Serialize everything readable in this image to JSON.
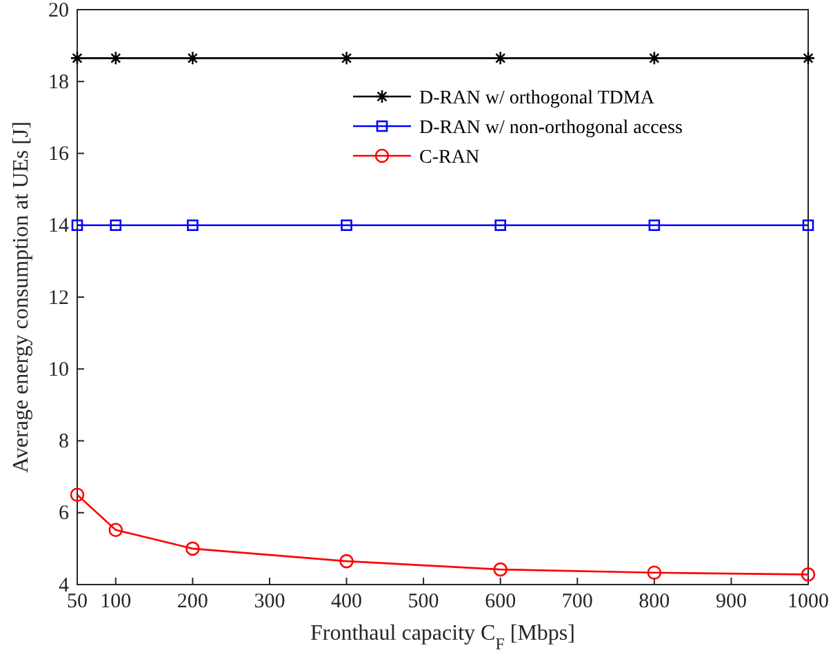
{
  "chart_data": {
    "type": "line",
    "xlabel": "Fronthaul capacity C$_{F}$ [Mbps]",
    "ylabel": "Average energy consumption at UEs [J]",
    "x": [
      50,
      100,
      200,
      400,
      600,
      800,
      1000
    ],
    "series": [
      {
        "name": "D-RAN w/ orthogonal TDMA",
        "color": "#000000",
        "marker": "cross",
        "values": [
          18.65,
          18.65,
          18.65,
          18.65,
          18.65,
          18.65,
          18.65
        ]
      },
      {
        "name": "D-RAN w/ non-orthogonal access",
        "color": "#0000ff",
        "marker": "square",
        "values": [
          14.0,
          14.0,
          14.0,
          14.0,
          14.0,
          14.0,
          14.0
        ]
      },
      {
        "name": "C-RAN",
        "color": "#ff0000",
        "marker": "circle",
        "values": [
          6.5,
          5.52,
          5.0,
          4.65,
          4.42,
          4.33,
          4.28
        ]
      }
    ],
    "xlim": [
      50,
      1000
    ],
    "xticks": [
      50,
      100,
      200,
      300,
      400,
      500,
      600,
      700,
      800,
      900,
      1000
    ],
    "ylim": [
      4,
      20
    ],
    "yticks": [
      4,
      6,
      8,
      10,
      12,
      14,
      16,
      18,
      20
    ],
    "grid": false,
    "legend": "top right",
    "line_style": "solid"
  }
}
